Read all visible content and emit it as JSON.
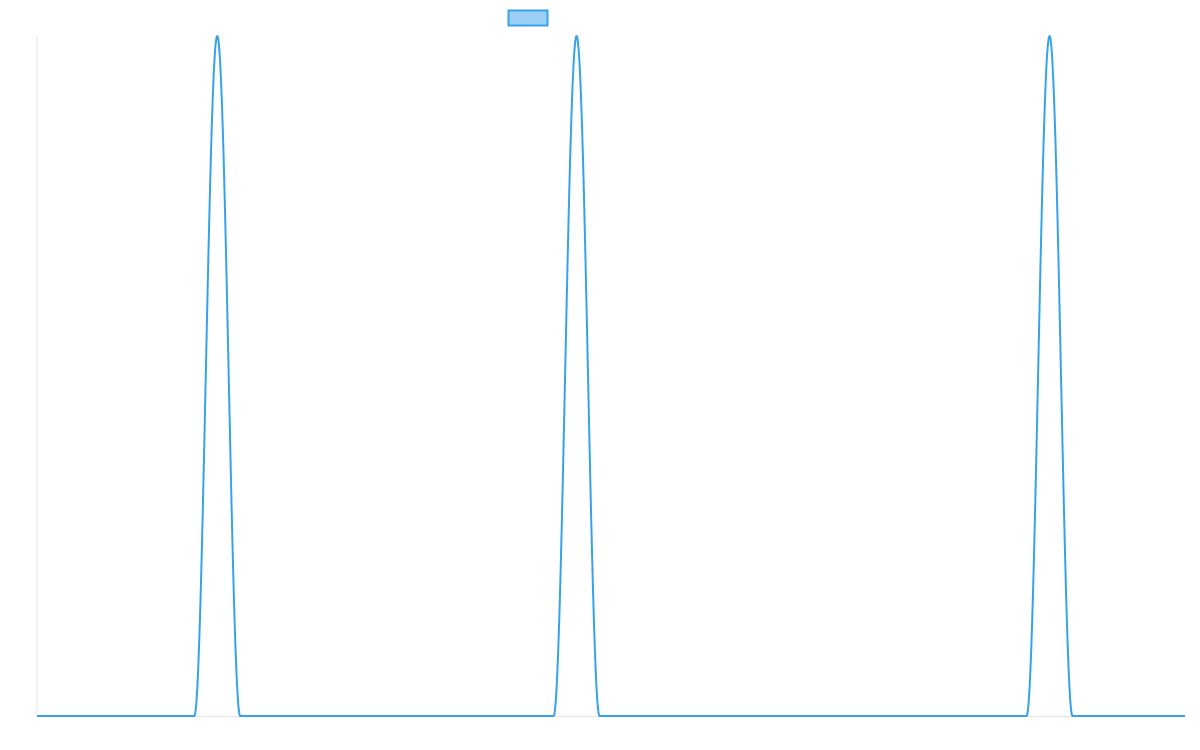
{
  "chart_data": {
    "type": "line",
    "title": "",
    "xlabel": "",
    "ylabel": "",
    "xlim": [
      0,
      100
    ],
    "ylim": [
      0,
      1
    ],
    "grid": false,
    "legend": {
      "placement": "top-center",
      "entries": [
        {
          "label": ""
        }
      ]
    },
    "series": [
      {
        "name": "",
        "color": "#36a2eb",
        "fill": "#9ad0f5",
        "baseline": 0,
        "peaks": [
          {
            "center": 15.7,
            "half_width": 2.0,
            "height": 1
          },
          {
            "center": 47.0,
            "half_width": 2.0,
            "height": 1
          },
          {
            "center": 88.2,
            "half_width": 2.0,
            "height": 1
          }
        ]
      }
    ]
  }
}
